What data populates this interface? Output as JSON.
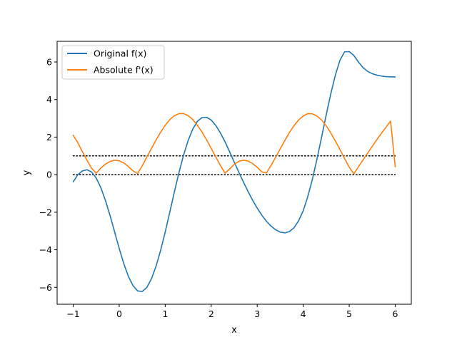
{
  "chart_data": {
    "type": "line",
    "title": "",
    "xlabel": "x",
    "ylabel": "y",
    "xlim": [
      -1.35,
      6.35
    ],
    "ylim": [
      -6.9,
      7.1
    ],
    "x_ticks": [
      -1,
      0,
      1,
      2,
      3,
      4,
      5,
      6
    ],
    "x_tick_labels": [
      "−1",
      "0",
      "1",
      "2",
      "3",
      "4",
      "5",
      "6"
    ],
    "y_ticks": [
      -6,
      -4,
      -2,
      0,
      2,
      4,
      6
    ],
    "y_tick_labels": [
      "−6",
      "−4",
      "−2",
      "0",
      "2",
      "4",
      "6"
    ],
    "grid": false,
    "legend_position": "upper-left",
    "colors": {
      "original": "#1f77b4",
      "derivative": "#ff7f0e",
      "reference": "#000000"
    },
    "series": [
      {
        "name": "Original f(x)",
        "x": [
          -1.0,
          -0.9,
          -0.8,
          -0.7,
          -0.6,
          -0.5,
          -0.4,
          -0.3,
          -0.2,
          -0.1,
          0.0,
          0.1,
          0.2,
          0.3,
          0.4,
          0.5,
          0.6,
          0.7,
          0.8,
          0.9,
          1.0,
          1.1,
          1.2,
          1.3,
          1.4,
          1.5,
          1.6,
          1.7,
          1.8,
          1.9,
          2.0,
          2.1,
          2.2,
          2.3,
          2.4,
          2.5,
          2.6,
          2.7,
          2.8,
          2.9,
          3.0,
          3.1,
          3.2,
          3.3,
          3.4,
          3.5,
          3.6,
          3.7,
          3.8,
          3.9,
          4.0,
          4.1,
          4.2,
          4.3,
          4.4,
          4.5,
          4.6,
          4.7,
          4.8,
          4.9,
          5.0,
          5.1,
          5.2,
          5.3,
          5.4,
          5.5,
          5.6,
          5.7,
          5.8,
          5.9,
          6.0
        ],
        "y": [
          -0.38,
          0.0,
          0.2,
          0.26,
          0.14,
          -0.18,
          -0.69,
          -1.37,
          -2.17,
          -3.05,
          -3.93,
          -4.74,
          -5.42,
          -5.91,
          -6.19,
          -6.22,
          -6.01,
          -5.55,
          -4.88,
          -4.03,
          -3.05,
          -1.99,
          -0.91,
          0.12,
          1.05,
          1.83,
          2.43,
          2.84,
          3.04,
          3.05,
          2.91,
          2.62,
          2.22,
          1.75,
          1.22,
          0.67,
          0.13,
          -0.39,
          -0.89,
          -1.36,
          -1.78,
          -2.16,
          -2.48,
          -2.74,
          -2.93,
          -3.06,
          -3.1,
          -3.03,
          -2.83,
          -2.46,
          -1.92,
          -1.17,
          -0.24,
          0.84,
          2.0,
          3.18,
          4.31,
          5.31,
          6.1,
          6.54,
          6.55,
          6.35,
          6.0,
          5.7,
          5.5,
          5.38,
          5.3,
          5.25,
          5.22,
          5.21,
          5.2
        ]
      },
      {
        "name": "Absolute f'(x)",
        "x": [
          -1.0,
          -0.9,
          -0.8,
          -0.7,
          -0.6,
          -0.5,
          -0.4,
          -0.3,
          -0.2,
          -0.1,
          0.0,
          0.1,
          0.2,
          0.3,
          0.4,
          0.5,
          0.6,
          0.7,
          0.8,
          0.9,
          1.0,
          1.1,
          1.2,
          1.3,
          1.4,
          1.5,
          1.6,
          1.7,
          1.8,
          1.9,
          2.0,
          2.1,
          2.2,
          2.3,
          2.4,
          2.5,
          2.6,
          2.7,
          2.8,
          2.9,
          3.0,
          3.1,
          3.2,
          3.3,
          3.4,
          3.5,
          3.6,
          3.7,
          3.8,
          3.9,
          4.0,
          4.1,
          4.2,
          4.3,
          4.4,
          4.5,
          4.6,
          4.7,
          4.8,
          4.9,
          5.0,
          5.1,
          5.2,
          5.3,
          5.4,
          5.5,
          5.6,
          5.7,
          5.8,
          5.9,
          6.0
        ],
        "y": [
          2.1,
          1.7,
          1.22,
          0.76,
          0.34,
          0.08,
          0.35,
          0.56,
          0.7,
          0.77,
          0.74,
          0.62,
          0.43,
          0.2,
          0.06,
          0.47,
          0.93,
          1.39,
          1.84,
          2.26,
          2.63,
          2.93,
          3.14,
          3.25,
          3.25,
          3.14,
          2.93,
          2.63,
          2.27,
          1.85,
          1.4,
          0.94,
          0.49,
          0.08,
          0.3,
          0.55,
          0.71,
          0.77,
          0.73,
          0.59,
          0.39,
          0.15,
          0.09,
          0.49,
          0.92,
          1.37,
          1.82,
          2.24,
          2.61,
          2.91,
          3.13,
          3.25,
          3.24,
          3.12,
          2.91,
          2.6,
          2.22,
          1.79,
          1.33,
          0.86,
          0.4,
          0.04,
          0.42,
          0.78,
          1.15,
          1.5,
          1.86,
          2.2,
          2.53,
          2.85,
          0.42
        ]
      }
    ],
    "reference_lines": [
      {
        "y": 1,
        "x_range": [
          -1,
          6
        ],
        "style": "dotted"
      },
      {
        "y": 0,
        "x_range": [
          -1,
          6
        ],
        "style": "dotted"
      }
    ]
  }
}
